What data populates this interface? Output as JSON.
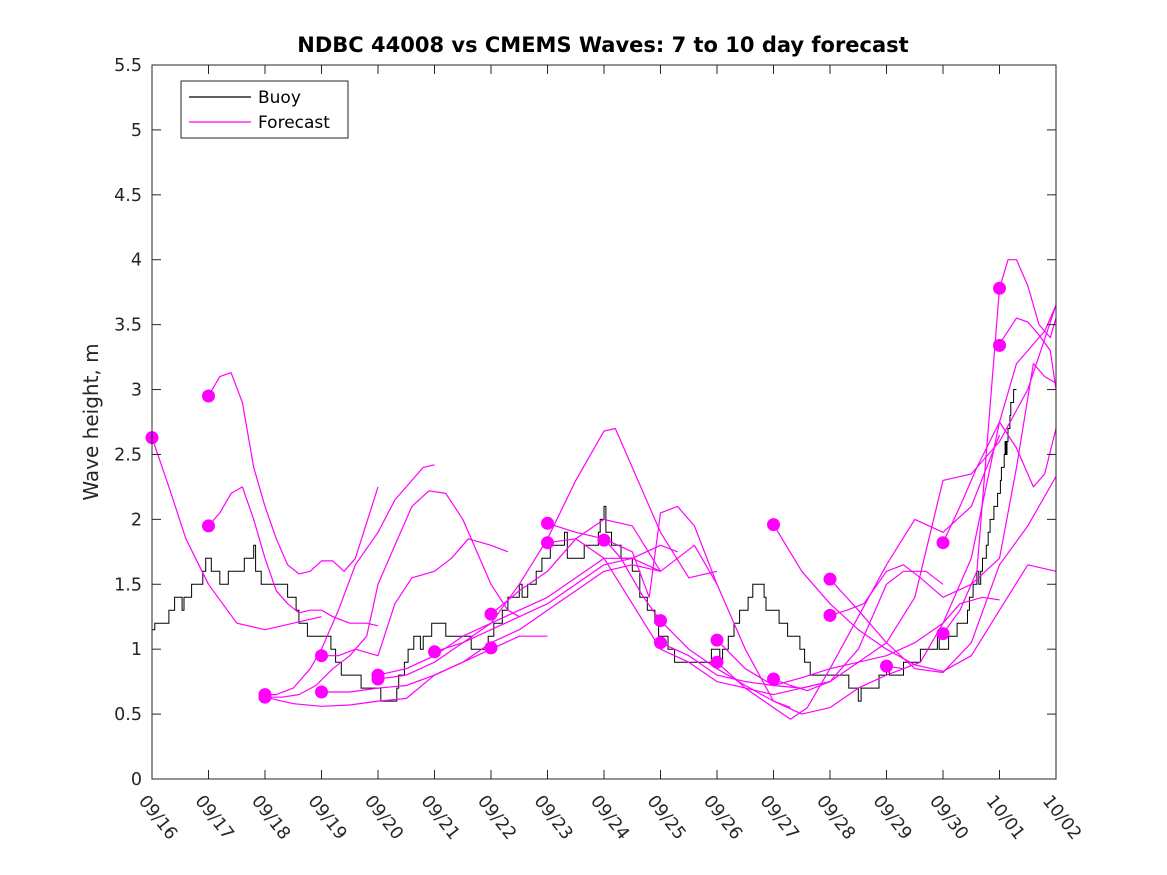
{
  "chart_data": {
    "type": "line",
    "title": "NDBC 44008 vs CMEMS Waves: 7 to 10 day forecast",
    "xlabel": "",
    "ylabel": "Wave height, m",
    "xlim": [
      0,
      16
    ],
    "ylim": [
      0,
      5.5
    ],
    "y_ticks": [
      0,
      0.5,
      1,
      1.5,
      2,
      2.5,
      3,
      3.5,
      4,
      4.5,
      5,
      5.5
    ],
    "y_tick_labels": [
      "0",
      "0.5",
      "1",
      "1.5",
      "2",
      "2.5",
      "3",
      "3.5",
      "4",
      "4.5",
      "5",
      "5.5"
    ],
    "x_ticks": [
      0,
      1,
      2,
      3,
      4,
      5,
      6,
      7,
      8,
      9,
      10,
      11,
      12,
      13,
      14,
      15,
      16
    ],
    "x_tick_labels": [
      "09/16",
      "09/17",
      "09/18",
      "09/19",
      "09/20",
      "09/21",
      "09/22",
      "09/23",
      "09/24",
      "09/25",
      "09/26",
      "09/27",
      "09/28",
      "09/29",
      "09/30",
      "10/01",
      "10/02"
    ],
    "x_units": "days since 09/16",
    "legend": {
      "location": "top-left",
      "entries": [
        {
          "label": "Buoy",
          "color": "#000000"
        },
        {
          "label": "Forecast",
          "color": "#ff00ff"
        }
      ]
    },
    "colors": {
      "buoy": "#000000",
      "forecast": "#ff00ff"
    },
    "buoy": {
      "name": "Buoy",
      "x": [
        0.0,
        0.3,
        0.5,
        0.7,
        0.9,
        1.0,
        1.3,
        1.6,
        1.8,
        2.0,
        2.2,
        2.5,
        2.8,
        3.0,
        3.2,
        3.5,
        3.8,
        4.0,
        4.3,
        4.5,
        4.7,
        5.0,
        5.3,
        5.6,
        5.9,
        6.2,
        6.5,
        6.8,
        7.0,
        7.3,
        7.6,
        7.9,
        8.0,
        8.2,
        8.4,
        8.6,
        8.8,
        9.0,
        9.2,
        9.5,
        9.8,
        10.0,
        10.3,
        10.6,
        10.8,
        11.0,
        11.3,
        11.5,
        11.8,
        12.0,
        12.3,
        12.5,
        12.8,
        13.0,
        13.3,
        13.6,
        13.9,
        14.1,
        14.4,
        14.6,
        14.8,
        15.0,
        15.1,
        15.2,
        15.3
      ],
      "values": [
        1.15,
        1.25,
        1.35,
        1.5,
        1.55,
        1.65,
        1.55,
        1.6,
        1.7,
        1.5,
        1.45,
        1.35,
        1.15,
        1.1,
        0.95,
        0.8,
        0.7,
        0.65,
        0.7,
        0.9,
        1.05,
        1.25,
        1.05,
        1.0,
        1.05,
        1.25,
        1.4,
        1.6,
        1.7,
        1.8,
        1.75,
        1.85,
        2.0,
        1.8,
        1.65,
        1.5,
        1.35,
        1.05,
        0.95,
        0.9,
        0.85,
        0.95,
        1.2,
        1.4,
        1.45,
        1.3,
        1.1,
        0.95,
        0.85,
        0.75,
        0.75,
        0.7,
        0.65,
        0.8,
        0.9,
        0.95,
        1.0,
        1.1,
        1.2,
        1.5,
        1.9,
        2.2,
        2.5,
        2.9,
        3.0
      ]
    },
    "forecast_series": [
      {
        "name": "Forecast",
        "x": [
          0.0,
          0.3,
          0.6,
          1.0,
          1.5,
          2.0,
          2.5,
          3.0
        ],
        "values": [
          2.63,
          2.25,
          1.85,
          1.5,
          1.2,
          1.15,
          1.2,
          1.25
        ]
      },
      {
        "name": "Forecast",
        "x": [
          1.0,
          1.2,
          1.4,
          1.6,
          1.8,
          2.0,
          2.2,
          2.4,
          2.6,
          2.8,
          3.0,
          3.2,
          3.5,
          3.8,
          4.0
        ],
        "values": [
          1.95,
          2.05,
          2.2,
          2.25,
          2.0,
          1.7,
          1.45,
          1.35,
          1.28,
          1.3,
          1.3,
          1.25,
          1.2,
          1.2,
          1.18
        ]
      },
      {
        "name": "Forecast",
        "x": [
          1.0,
          1.2,
          1.4,
          1.6,
          1.8,
          2.0,
          2.2,
          2.4,
          2.6,
          2.8,
          3.0,
          3.2,
          3.4,
          3.6,
          4.0
        ],
        "values": [
          2.95,
          3.1,
          3.13,
          2.9,
          2.4,
          2.1,
          1.85,
          1.65,
          1.58,
          1.6,
          1.68,
          1.68,
          1.6,
          1.7,
          2.25
        ]
      },
      {
        "name": "Forecast",
        "x": [
          2.0,
          2.3,
          2.6,
          2.9,
          3.2,
          3.5,
          3.8,
          4.0,
          4.3,
          4.6,
          4.9,
          5.2,
          5.5,
          5.8,
          6.0,
          6.3,
          6.5
        ],
        "values": [
          0.63,
          0.63,
          0.65,
          0.72,
          0.85,
          0.95,
          1.1,
          1.5,
          1.8,
          2.1,
          2.22,
          2.2,
          2.0,
          1.7,
          1.5,
          1.3,
          1.25
        ]
      },
      {
        "name": "Forecast",
        "x": [
          2.0,
          2.2,
          2.5,
          2.8,
          3.0,
          3.3,
          3.6,
          4.0,
          4.3,
          4.6,
          4.8,
          5.0
        ],
        "values": [
          0.65,
          0.65,
          0.7,
          0.85,
          1.0,
          1.3,
          1.65,
          1.9,
          2.15,
          2.3,
          2.4,
          2.42
        ]
      },
      {
        "name": "Forecast",
        "x": [
          3.0,
          3.3,
          3.6,
          4.0,
          4.3,
          4.6,
          5.0,
          5.3,
          5.6,
          6.0,
          6.3
        ],
        "values": [
          0.95,
          0.95,
          1.0,
          0.95,
          1.35,
          1.55,
          1.6,
          1.7,
          1.85,
          1.8,
          1.75
        ]
      },
      {
        "name": "Forecast",
        "x": [
          2.0,
          2.5,
          3.0,
          3.5,
          4.0,
          4.5,
          5.0,
          5.5,
          6.0,
          6.5,
          7.0
        ],
        "values": [
          0.63,
          0.58,
          0.56,
          0.57,
          0.6,
          0.62,
          0.8,
          0.9,
          1.0,
          1.1,
          1.1
        ]
      },
      {
        "name": "Forecast",
        "x": [
          3.0,
          3.5,
          4.0,
          4.5,
          5.0,
          5.5,
          6.0,
          6.5,
          7.0,
          7.5,
          8.0,
          8.5,
          9.0
        ],
        "values": [
          0.67,
          0.67,
          0.7,
          0.72,
          0.8,
          0.9,
          1.05,
          1.15,
          1.3,
          1.45,
          1.6,
          1.65,
          1.6
        ]
      },
      {
        "name": "Forecast",
        "x": [
          4.0,
          4.5,
          5.0,
          5.5,
          6.0,
          6.5,
          7.0,
          7.5,
          8.0,
          8.5,
          9.0
        ],
        "values": [
          0.77,
          0.8,
          0.9,
          1.05,
          1.15,
          1.25,
          1.35,
          1.5,
          1.65,
          1.7,
          1.6
        ]
      },
      {
        "name": "Forecast",
        "x": [
          4.0,
          4.5,
          5.0,
          5.5,
          6.0,
          6.5,
          7.0,
          7.5,
          8.0,
          8.5,
          9.0,
          9.3
        ],
        "values": [
          0.8,
          0.85,
          0.95,
          1.1,
          1.2,
          1.3,
          1.4,
          1.55,
          1.7,
          1.7,
          1.8,
          1.75
        ]
      },
      {
        "name": "Forecast",
        "x": [
          5.0,
          5.5,
          6.0,
          6.5,
          7.0,
          7.5,
          8.0,
          8.2,
          8.5,
          9.0,
          9.5,
          10.0
        ],
        "values": [
          0.98,
          1.05,
          1.2,
          1.5,
          1.85,
          2.3,
          2.68,
          2.7,
          2.4,
          1.9,
          1.55,
          1.6
        ]
      },
      {
        "name": "Forecast",
        "x": [
          6.0,
          6.5,
          7.0,
          7.5,
          8.0,
          8.5,
          9.0,
          9.3,
          9.6,
          10.0
        ],
        "values": [
          1.27,
          1.45,
          1.6,
          1.85,
          2.0,
          1.95,
          1.6,
          1.7,
          1.8,
          1.5
        ]
      },
      {
        "name": "Forecast",
        "x": [
          7.0,
          7.5,
          8.0,
          8.5,
          8.8,
          9.0,
          9.3,
          9.6,
          10.0,
          10.5,
          11.0,
          11.3
        ],
        "values": [
          1.97,
          1.9,
          1.85,
          1.75,
          1.4,
          2.05,
          2.1,
          1.95,
          1.5,
          1.0,
          0.6,
          0.55
        ]
      },
      {
        "name": "Forecast",
        "x": [
          7.0,
          7.5,
          8.0,
          8.5,
          9.0,
          9.5,
          10.0,
          10.5,
          11.0,
          11.5,
          12.0
        ],
        "values": [
          1.82,
          1.85,
          1.7,
          1.35,
          1.0,
          0.9,
          0.75,
          0.7,
          0.65,
          0.7,
          0.75
        ]
      },
      {
        "name": "Forecast",
        "x": [
          8.0,
          8.3,
          8.7,
          9.0,
          9.5,
          10.0,
          10.5,
          11.0,
          11.5,
          12.0,
          12.5,
          13.0,
          13.3
        ],
        "values": [
          1.85,
          1.7,
          1.4,
          1.22,
          1.0,
          0.85,
          0.72,
          0.6,
          0.5,
          0.55,
          0.7,
          0.8,
          0.85
        ]
      },
      {
        "name": "Forecast",
        "x": [
          9.0,
          9.5,
          10.0,
          10.5,
          11.0,
          11.5,
          12.0,
          12.5,
          13.0,
          13.3,
          13.7,
          14.0
        ],
        "values": [
          1.05,
          0.95,
          0.8,
          0.75,
          0.72,
          0.7,
          0.75,
          1.0,
          1.5,
          1.6,
          1.6,
          1.5
        ]
      },
      {
        "name": "Forecast",
        "x": [
          10.0,
          10.5,
          11.0,
          11.5,
          12.0,
          12.5,
          13.0,
          13.5,
          14.0,
          14.3,
          14.7,
          15.0
        ],
        "values": [
          1.07,
          0.85,
          0.72,
          0.78,
          0.85,
          0.9,
          0.95,
          1.05,
          1.2,
          1.35,
          1.4,
          1.38
        ]
      },
      {
        "name": "Forecast",
        "x": [
          10.0,
          10.5,
          11.0,
          11.3,
          11.6,
          12.0,
          12.5,
          13.0,
          13.5,
          14.0,
          14.5,
          15.0
        ],
        "values": [
          0.9,
          0.7,
          0.55,
          0.46,
          0.55,
          0.85,
          1.25,
          1.65,
          2.0,
          1.9,
          2.1,
          2.65
        ]
      },
      {
        "name": "Forecast",
        "x": [
          11.0,
          11.5,
          12.0,
          12.5,
          13.0,
          13.5,
          14.0,
          14.5,
          15.0,
          15.5,
          16.0
        ],
        "values": [
          1.96,
          1.6,
          1.35,
          1.15,
          1.0,
          0.88,
          0.83,
          0.95,
          1.3,
          1.65,
          1.6
        ]
      },
      {
        "name": "Forecast",
        "x": [
          11.0,
          11.3,
          11.6,
          12.0,
          12.5,
          13.0,
          13.5,
          14.0,
          14.5,
          15.0,
          15.5,
          16.0
        ],
        "values": [
          0.77,
          0.72,
          0.68,
          0.75,
          0.9,
          1.05,
          1.4,
          2.3,
          2.35,
          2.6,
          3.0,
          3.65
        ]
      },
      {
        "name": "Forecast",
        "x": [
          12.0,
          12.5,
          13.0,
          13.5,
          14.0,
          14.5,
          15.0,
          15.5,
          16.0
        ],
        "values": [
          1.54,
          1.3,
          1.05,
          0.85,
          0.82,
          1.05,
          1.65,
          1.95,
          2.33
        ]
      },
      {
        "name": "Forecast",
        "x": [
          12.0,
          12.3,
          12.6,
          13.0,
          13.3,
          13.6,
          14.0,
          14.5,
          15.0,
          15.3,
          15.6,
          15.8,
          16.0
        ],
        "values": [
          1.26,
          1.3,
          1.35,
          1.6,
          1.65,
          1.55,
          1.4,
          1.5,
          1.7,
          2.4,
          3.2,
          3.1,
          3.05
        ]
      },
      {
        "name": "Forecast",
        "x": [
          13.0,
          13.3,
          13.6,
          14.0,
          14.5,
          15.0,
          15.3,
          15.6,
          15.8,
          16.0
        ],
        "values": [
          0.87,
          0.85,
          0.9,
          1.2,
          1.7,
          2.75,
          3.2,
          3.35,
          3.45,
          3.65
        ]
      },
      {
        "name": "Forecast",
        "x": [
          14.0,
          14.3,
          14.6,
          15.0,
          15.3,
          15.6,
          15.8,
          16.0
        ],
        "values": [
          1.82,
          2.1,
          2.4,
          2.75,
          2.55,
          2.25,
          2.35,
          2.7
        ]
      },
      {
        "name": "Forecast",
        "x": [
          15.0,
          15.15,
          15.3,
          15.5,
          15.7,
          15.9,
          16.0
        ],
        "values": [
          3.35,
          3.45,
          3.55,
          3.52,
          3.42,
          3.3,
          3.0
        ]
      },
      {
        "name": "Forecast",
        "x": [
          14.0,
          14.3,
          14.6,
          15.0,
          15.15,
          15.3,
          15.5,
          15.7,
          15.9,
          16.0
        ],
        "values": [
          1.12,
          1.3,
          1.6,
          3.78,
          4.0,
          4.0,
          3.8,
          3.5,
          3.4,
          3.55
        ]
      }
    ],
    "forecast_markers": {
      "x": [
        0.0,
        1.0,
        1.0,
        2.0,
        2.0,
        3.0,
        3.0,
        4.0,
        4.0,
        5.0,
        6.0,
        6.0,
        7.0,
        7.0,
        8.0,
        9.0,
        9.0,
        10.0,
        10.0,
        11.0,
        11.0,
        12.0,
        12.0,
        13.0,
        14.0,
        14.0,
        15.0,
        15.0
      ],
      "values": [
        2.63,
        2.95,
        1.95,
        0.65,
        0.63,
        0.95,
        0.67,
        0.8,
        0.77,
        0.98,
        1.27,
        1.01,
        1.97,
        1.82,
        1.84,
        1.22,
        1.05,
        1.07,
        0.9,
        1.96,
        0.77,
        1.54,
        1.26,
        0.87,
        1.82,
        1.12,
        3.78,
        3.34
      ]
    }
  }
}
